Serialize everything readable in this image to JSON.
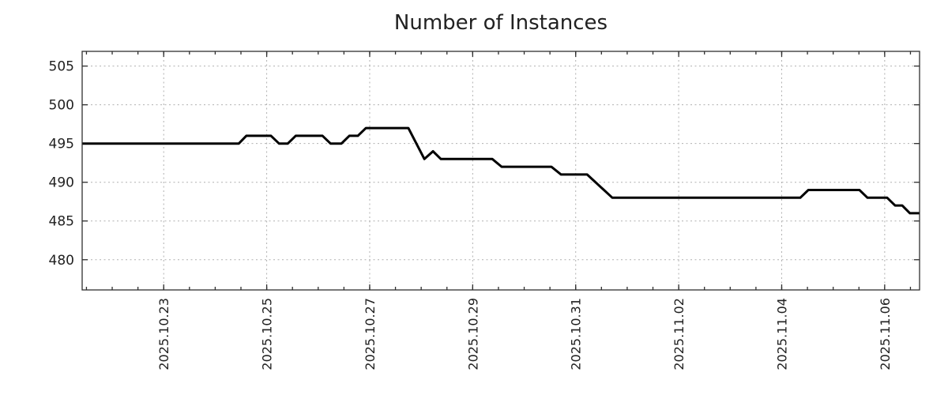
{
  "chart_data": {
    "type": "line",
    "title": "Number of Instances",
    "xlabel": "",
    "ylabel": "",
    "grid": true,
    "legend": "none",
    "x_axis": {
      "range": [
        "2025-10-21T10:00",
        "2025-11-06T16:15"
      ],
      "major_ticks": [
        {
          "date": "2025-10-23T00:00",
          "label": "2025.10.23"
        },
        {
          "date": "2025-10-25T00:00",
          "label": "2025.10.25"
        },
        {
          "date": "2025-10-27T00:00",
          "label": "2025.10.27"
        },
        {
          "date": "2025-10-29T00:00",
          "label": "2025.10.29"
        },
        {
          "date": "2025-10-31T00:00",
          "label": "2025.10.31"
        },
        {
          "date": "2025-11-02T00:00",
          "label": "2025.11.02"
        },
        {
          "date": "2025-11-04T00:00",
          "label": "2025.11.04"
        },
        {
          "date": "2025-11-06T00:00",
          "label": "2025.11.06"
        }
      ],
      "minor_tick_hours": 12,
      "label_rotation_deg": 90
    },
    "y_axis": {
      "range": [
        476.1,
        506.9
      ],
      "ticks": [
        480,
        485,
        490,
        495,
        500,
        505
      ]
    },
    "series": [
      {
        "name": "instances",
        "color": "#000000",
        "line_width": 3,
        "points": [
          [
            "2025-10-21T10:00",
            495
          ],
          [
            "2025-10-24T11:00",
            495
          ],
          [
            "2025-10-24T14:30",
            496
          ],
          [
            "2025-10-25T02:00",
            496
          ],
          [
            "2025-10-25T05:45",
            495
          ],
          [
            "2025-10-25T09:50",
            495
          ],
          [
            "2025-10-25T13:30",
            496
          ],
          [
            "2025-10-26T02:00",
            496
          ],
          [
            "2025-10-26T05:45",
            495
          ],
          [
            "2025-10-26T10:50",
            495
          ],
          [
            "2025-10-26T14:30",
            496
          ],
          [
            "2025-10-26T18:30",
            496
          ],
          [
            "2025-10-26T22:15",
            497
          ],
          [
            "2025-10-27T18:00",
            497
          ],
          [
            "2025-10-28T01:30",
            493
          ],
          [
            "2025-10-28T05:30",
            494
          ],
          [
            "2025-10-28T09:10",
            493
          ],
          [
            "2025-10-29T09:10",
            493
          ],
          [
            "2025-10-29T13:30",
            492
          ],
          [
            "2025-10-30T12:40",
            492
          ],
          [
            "2025-10-30T17:10",
            491
          ],
          [
            "2025-10-31T05:20",
            491
          ],
          [
            "2025-10-31T17:05",
            488
          ],
          [
            "2025-11-04T08:40",
            488
          ],
          [
            "2025-11-04T12:25",
            489
          ],
          [
            "2025-11-05T12:15",
            489
          ],
          [
            "2025-11-05T16:00",
            488
          ],
          [
            "2025-11-06T01:10",
            488
          ],
          [
            "2025-11-06T04:50",
            487
          ],
          [
            "2025-11-06T08:10",
            487
          ],
          [
            "2025-11-06T11:45",
            486
          ],
          [
            "2025-11-06T16:15",
            486
          ]
        ]
      }
    ],
    "colors": {
      "background": "#ffffff",
      "grid": "#b0b0b0",
      "axis": "#2f2f2f",
      "text": "#212121",
      "line": "#000000"
    }
  }
}
